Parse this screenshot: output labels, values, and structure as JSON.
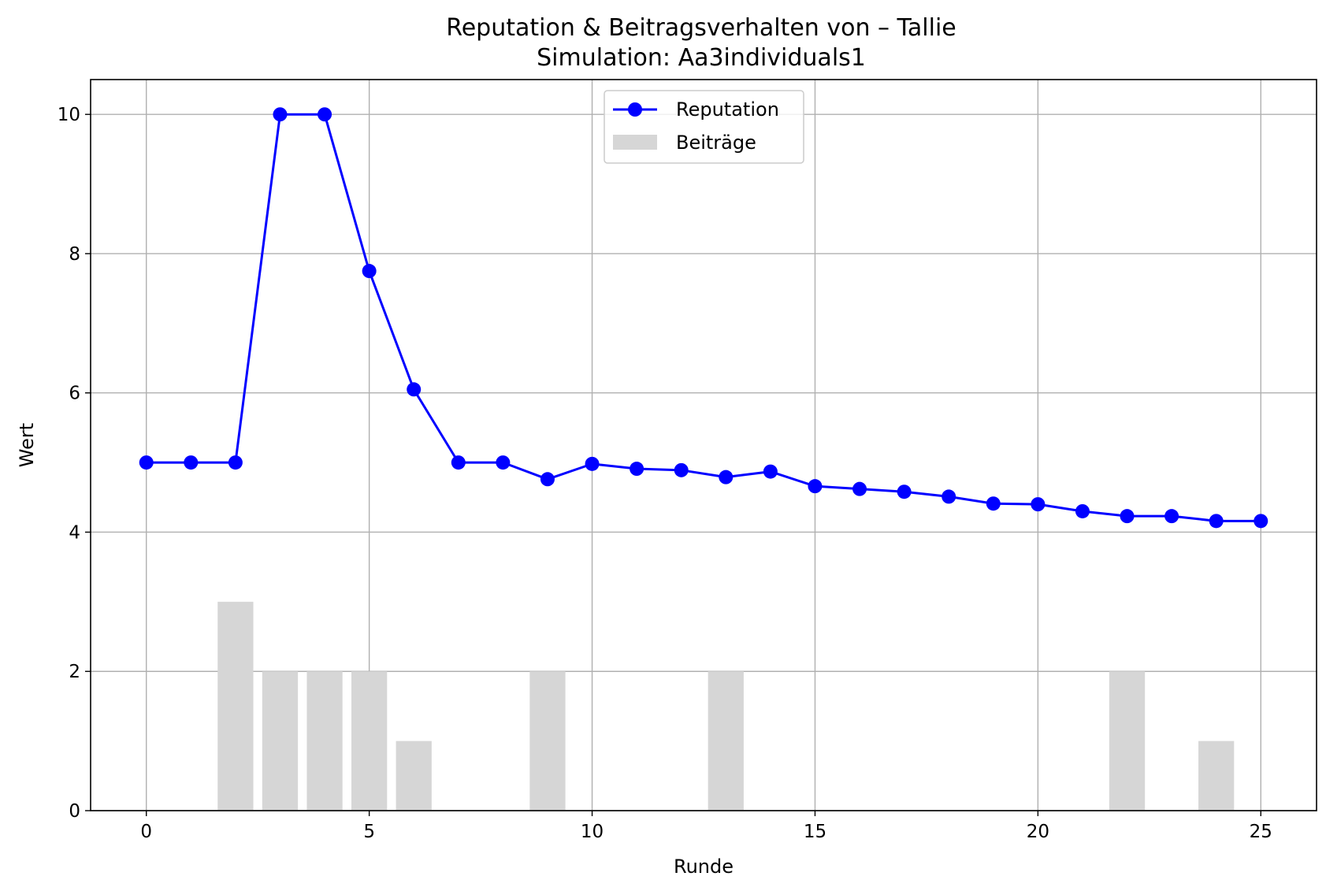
{
  "chart_data": {
    "type": "line",
    "title": "Reputation & Beitragsverhalten von – Tallie",
    "subtitle": "Simulation: Aa3individuals1",
    "xlabel": "Runde",
    "ylabel": "Wert",
    "xlim": [
      -1.25,
      26.25
    ],
    "ylim": [
      0,
      10.5
    ],
    "xticks": [
      "0",
      "5",
      "10",
      "15",
      "20",
      "25"
    ],
    "yticks": [
      "0",
      "2",
      "4",
      "6",
      "8",
      "10"
    ],
    "grid": true,
    "legend_position": "top-center",
    "series": [
      {
        "name": "Reputation",
        "kind": "line",
        "color": "#0000ff",
        "x": [
          0,
          1,
          2,
          3,
          4,
          5,
          6,
          7,
          8,
          9,
          10,
          11,
          12,
          13,
          14,
          15,
          16,
          17,
          18,
          19,
          20,
          21,
          22,
          23,
          24,
          25
        ],
        "values": [
          5.0,
          5.0,
          5.0,
          10.0,
          10.0,
          7.75,
          6.05,
          5.0,
          5.0,
          4.76,
          4.98,
          4.91,
          4.89,
          4.79,
          4.87,
          4.66,
          4.62,
          4.58,
          4.51,
          4.41,
          4.4,
          4.3,
          4.23,
          4.23,
          4.16,
          4.16
        ]
      },
      {
        "name": "Beiträge",
        "kind": "bar",
        "color": "#d6d6d6",
        "x": [
          0,
          1,
          2,
          3,
          4,
          5,
          6,
          7,
          8,
          9,
          10,
          11,
          12,
          13,
          14,
          15,
          16,
          17,
          18,
          19,
          20,
          21,
          22,
          23,
          24,
          25
        ],
        "values": [
          0,
          0,
          3,
          2,
          2,
          2,
          1,
          0,
          0,
          2,
          0,
          0,
          0,
          2,
          0,
          0,
          0,
          0,
          0,
          0,
          0,
          0,
          2,
          0,
          1,
          0
        ]
      }
    ]
  }
}
